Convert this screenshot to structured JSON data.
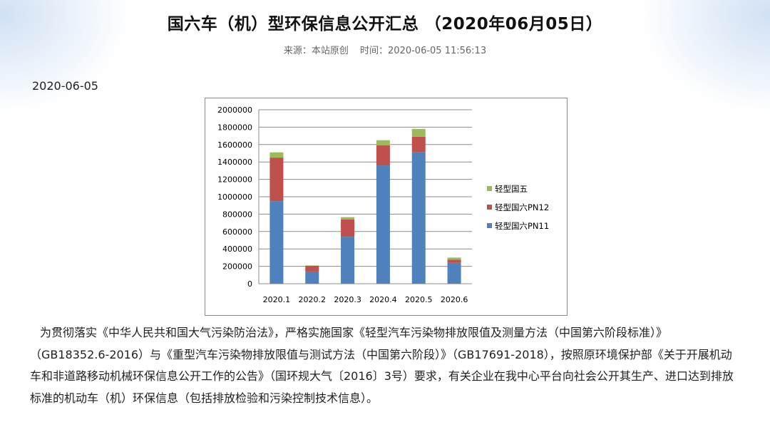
{
  "article": {
    "title": "国六车（机）型环保信息公开汇总 （2020年06月05日）",
    "source_label": "来源：本站原创",
    "time_label": "时间：2020-06-05 11:56:13",
    "date": "2020-06-05",
    "body": "为贯彻落实《中华人民共和国大气污染防治法》，严格实施国家《轻型汽车污染物排放限值及测量方法（中国第六阶段标准）》（GB18352.6-2016）与《重型汽车污染物排放限值与测试方法（中国第六阶段）》（GB17691-2018），按照原环境保护部《关于开展机动车和非道路移动机械环保信息公开工作的公告》（国环规大气〔2016〕3号）要求，有关企业在我中心平台向社会公开其生产、进口达到排放标准的机动车（机）环保信息（包括排放检验和污染控制技术信息）。"
  },
  "chart_data": {
    "type": "bar",
    "stacked": true,
    "categories": [
      "2020.1",
      "2020.2",
      "2020.3",
      "2020.4",
      "2020.5",
      "2020.6"
    ],
    "series": [
      {
        "name": "轻型国六PN11",
        "color": "#4F81BD",
        "values": [
          950000,
          140000,
          540000,
          1360000,
          1510000,
          240000
        ]
      },
      {
        "name": "轻型国六PN12",
        "color": "#C0504D",
        "values": [
          500000,
          65000,
          200000,
          230000,
          180000,
          35000
        ]
      },
      {
        "name": "轻型国五",
        "color": "#9BBB59",
        "values": [
          60000,
          5000,
          25000,
          60000,
          90000,
          25000
        ]
      }
    ],
    "ylim": [
      0,
      2000000
    ],
    "yticks": [
      0,
      200000,
      400000,
      600000,
      800000,
      1000000,
      1200000,
      1400000,
      1600000,
      1800000,
      2000000
    ],
    "grid": true,
    "legend_position": "right",
    "legend_order": [
      "轻型国五",
      "轻型国六PN12",
      "轻型国六PN11"
    ]
  }
}
